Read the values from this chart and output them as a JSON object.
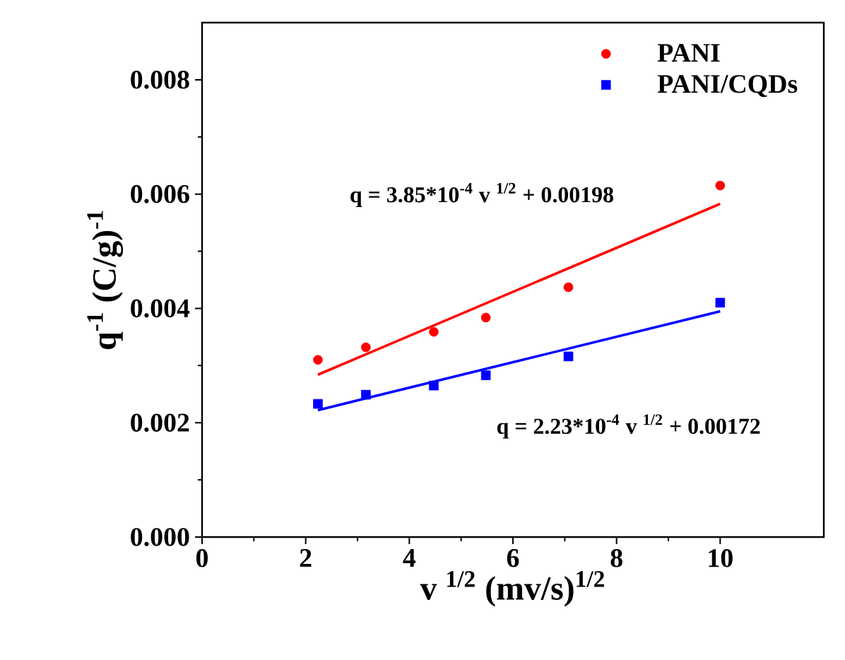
{
  "chart_data": {
    "type": "scatter",
    "xlabel": "v $^{1/2}$ (mv/s)$^{1/2}$",
    "ylabel": "q$^{-1}$ (C/g)$^{-1}$",
    "xlim": [
      0,
      12
    ],
    "ylim": [
      0,
      0.009
    ],
    "xticks": [
      0,
      2,
      4,
      6,
      8,
      10
    ],
    "yticks": [
      {
        "value": 0,
        "label": "0.000"
      },
      {
        "value": 0.002,
        "label": "0.002"
      },
      {
        "value": 0.004,
        "label": "0.004"
      },
      {
        "value": 0.006,
        "label": "0.006"
      },
      {
        "value": 0.008,
        "label": "0.008"
      }
    ],
    "legend": "top right",
    "series": [
      {
        "name": "PANI",
        "marker": "circle",
        "color": "#ff0000",
        "x": [
          2.236,
          3.162,
          4.472,
          5.477,
          7.071,
          10
        ],
        "values": [
          0.0031,
          0.00332,
          0.00359,
          0.00384,
          0.00437,
          0.00615
        ]
      },
      {
        "name": "PANI/CQDs",
        "marker": "square",
        "color": "#0000ff",
        "x": [
          2.236,
          3.162,
          4.472,
          5.477,
          7.071,
          10
        ],
        "values": [
          0.00233,
          0.00249,
          0.00265,
          0.00283,
          0.00316,
          0.0041
        ]
      },
      {
        "type": "line",
        "color": "#ff0000",
        "x": [
          2.236,
          10
        ],
        "values": [
          0.00284,
          0.00583
        ]
      },
      {
        "type": "line",
        "color": "#0000ff",
        "x": [
          2.236,
          10
        ],
        "values": [
          0.00222,
          0.00395
        ]
      }
    ],
    "annotations": [
      "q = 3.85*10$^{-4}$ v $^{1/2}$ + 0.00198",
      "q = 2.23*10$^{-4}$ v $^{1/2}$ + 0.00172"
    ]
  }
}
